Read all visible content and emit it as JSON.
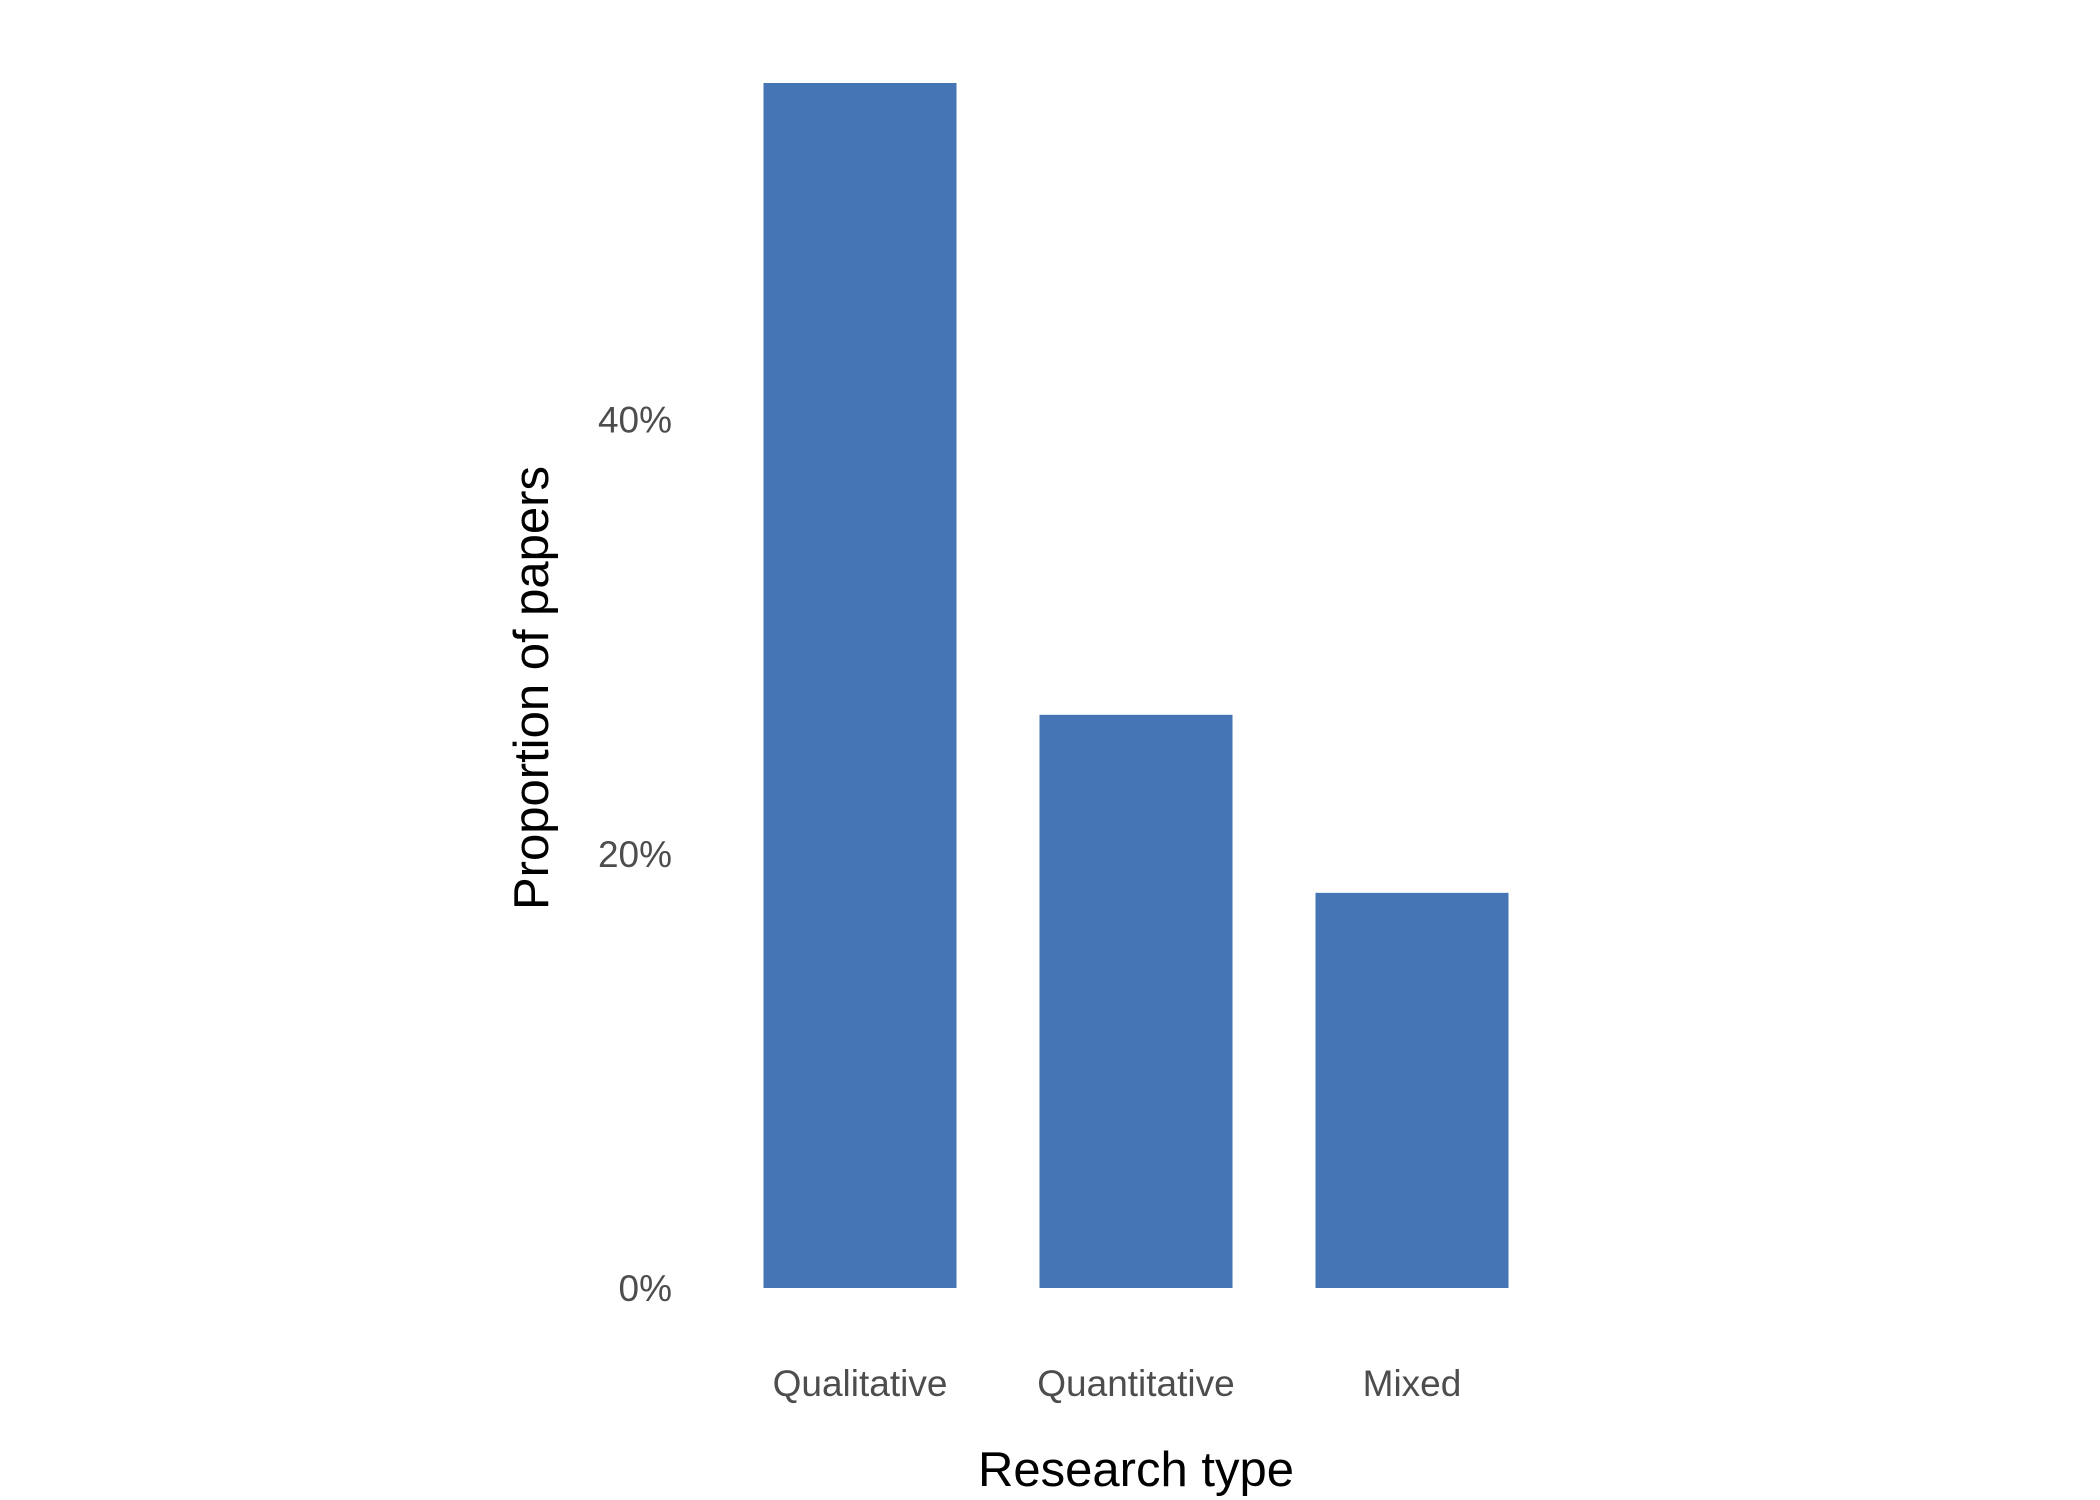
{
  "colors": {
    "bar": "#4575b4",
    "tick_text": "#4d4d4d",
    "axis_title": "#000000",
    "background": "#ffffff"
  },
  "chart_data": {
    "type": "bar",
    "title": "",
    "xlabel": "Research type",
    "ylabel": "Proportion of papers",
    "categories": [
      "Qualitative",
      "Quantitative",
      "Mixed"
    ],
    "values": [
      55.5,
      26.4,
      18.2
    ],
    "value_unit": "%",
    "ylim": [
      0,
      55.5
    ],
    "yticks": [
      0,
      20,
      40
    ],
    "ytick_labels": [
      "0%",
      "20%",
      "40%"
    ],
    "grid": false,
    "legend": "none"
  }
}
